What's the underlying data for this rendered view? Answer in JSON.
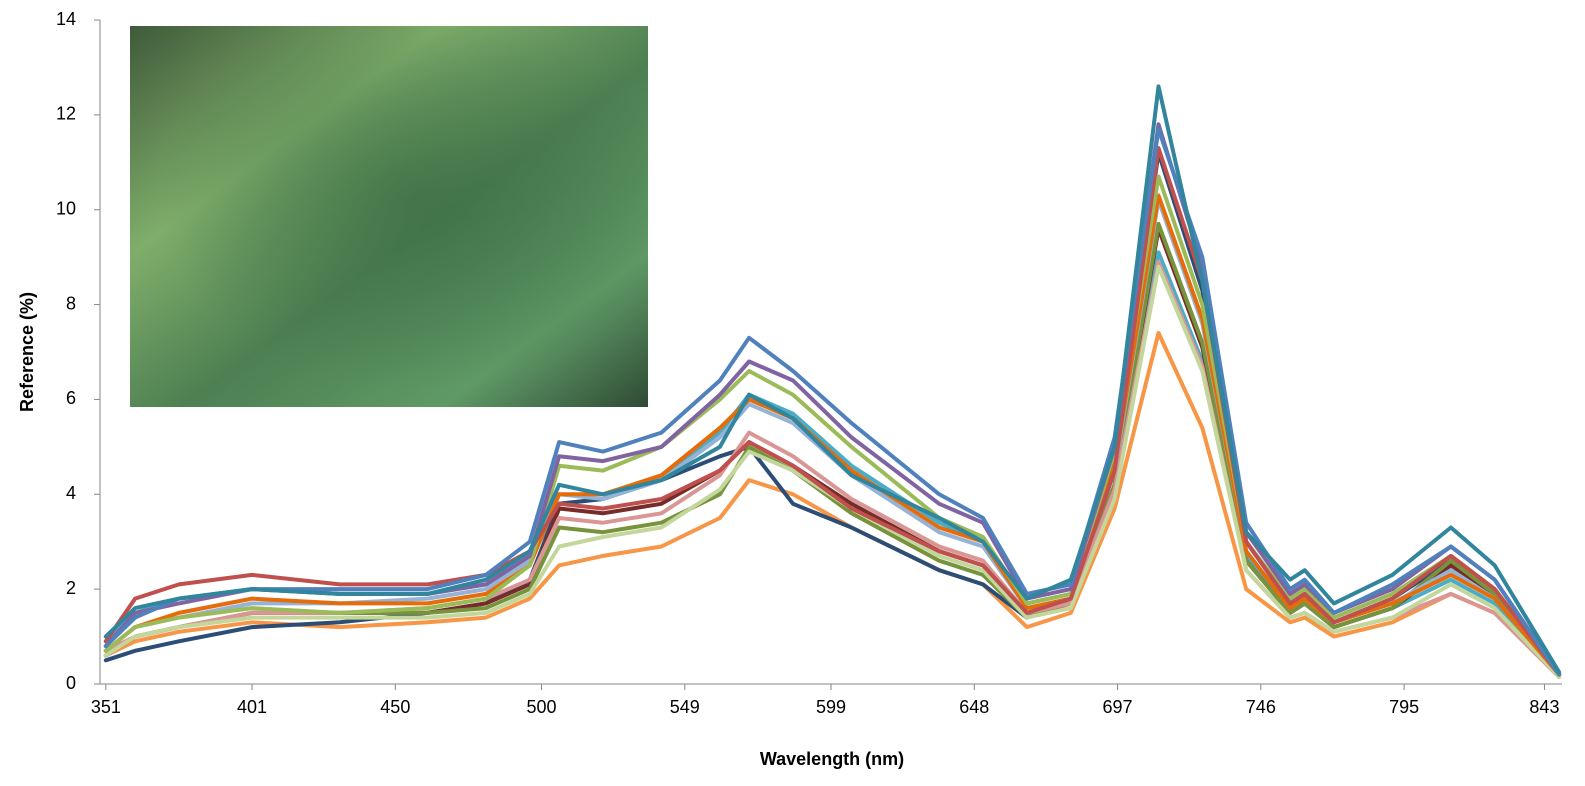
{
  "chart_data": {
    "type": "line",
    "x_label": "Wavelength (nm)",
    "y_label": "Reference (%)",
    "x": [
      351,
      361,
      376,
      401,
      431,
      461,
      481,
      496,
      506,
      521,
      541,
      561,
      571,
      586,
      606,
      636,
      651,
      666,
      681,
      696,
      711,
      726,
      741,
      756,
      761,
      771,
      791,
      811,
      826,
      848
    ],
    "xlim": [
      349,
      849
    ],
    "xticks": [
      351,
      401,
      450,
      500,
      549,
      599,
      648,
      697,
      746,
      795,
      843
    ],
    "ylim": [
      0,
      14
    ],
    "yticks": [
      0,
      2,
      4,
      6,
      8,
      10,
      12,
      14
    ],
    "series": [
      {
        "color": "#4bacc6",
        "values": [
          0.9,
          1.5,
          1.8,
          2.0,
          1.9,
          1.9,
          2.1,
          2.6,
          3.8,
          3.9,
          4.4,
          5.3,
          6.1,
          5.7,
          4.6,
          3.4,
          3.0,
          1.7,
          1.9,
          4.5,
          9.1,
          6.8,
          2.7,
          1.6,
          1.8,
          1.2,
          1.6,
          2.2,
          1.7,
          0.2
        ]
      },
      {
        "color": "#f79646",
        "values": [
          0.6,
          0.9,
          1.1,
          1.3,
          1.2,
          1.3,
          1.4,
          1.8,
          2.5,
          2.7,
          2.9,
          3.5,
          4.3,
          4.0,
          3.3,
          2.4,
          2.1,
          1.2,
          1.5,
          3.7,
          7.4,
          5.4,
          2.0,
          1.3,
          1.4,
          1.0,
          1.3,
          1.9,
          1.5,
          0.15
        ]
      },
      {
        "color": "#2c4d75",
        "values": [
          0.5,
          0.7,
          0.9,
          1.2,
          1.3,
          1.5,
          1.7,
          2.2,
          3.8,
          3.9,
          4.3,
          4.8,
          5.0,
          3.8,
          3.3,
          2.4,
          2.1,
          1.4,
          1.8,
          4.7,
          11.2,
          8.3,
          3.0,
          1.7,
          1.9,
          1.3,
          1.8,
          2.6,
          2.0,
          0.2
        ]
      },
      {
        "color": "#772c2a",
        "values": [
          0.6,
          1.0,
          1.2,
          1.5,
          1.5,
          1.5,
          1.7,
          2.1,
          3.7,
          3.6,
          3.8,
          4.5,
          5.1,
          4.6,
          3.8,
          2.8,
          2.5,
          1.5,
          1.8,
          4.2,
          9.6,
          7.1,
          2.6,
          1.5,
          1.7,
          1.2,
          1.6,
          2.5,
          1.9,
          0.2
        ]
      },
      {
        "color": "#77933c",
        "values": [
          0.6,
          1.0,
          1.2,
          1.5,
          1.5,
          1.5,
          1.6,
          2.0,
          3.3,
          3.2,
          3.4,
          4.0,
          5.0,
          4.5,
          3.6,
          2.6,
          2.3,
          1.4,
          1.7,
          4.2,
          9.7,
          7.2,
          2.6,
          1.5,
          1.7,
          1.2,
          1.6,
          2.6,
          1.9,
          0.2
        ]
      },
      {
        "color": "#d99694",
        "values": [
          0.7,
          1.0,
          1.2,
          1.5,
          1.5,
          1.6,
          1.8,
          2.2,
          3.5,
          3.4,
          3.6,
          4.4,
          5.3,
          4.8,
          3.9,
          2.9,
          2.6,
          1.5,
          1.7,
          4.1,
          8.9,
          6.7,
          2.4,
          1.4,
          1.5,
          1.1,
          1.4,
          1.9,
          1.5,
          0.15
        ]
      },
      {
        "color": "#c3d69b",
        "values": [
          0.6,
          1.0,
          1.2,
          1.4,
          1.4,
          1.4,
          1.5,
          1.9,
          2.9,
          3.1,
          3.3,
          4.1,
          4.9,
          4.5,
          3.7,
          2.7,
          2.4,
          1.4,
          1.6,
          3.9,
          8.8,
          6.6,
          2.4,
          1.4,
          1.5,
          1.1,
          1.4,
          2.1,
          1.6,
          0.15
        ]
      },
      {
        "color": "#95b3d7",
        "values": [
          0.7,
          1.2,
          1.4,
          1.7,
          1.7,
          1.8,
          2.0,
          2.6,
          4.0,
          3.9,
          4.3,
          5.2,
          5.9,
          5.5,
          4.4,
          3.2,
          2.9,
          1.6,
          1.8,
          4.5,
          10.2,
          7.6,
          2.8,
          1.6,
          1.8,
          1.3,
          1.7,
          2.4,
          1.8,
          0.2
        ]
      },
      {
        "color": "#e46c0a",
        "values": [
          0.7,
          1.2,
          1.5,
          1.8,
          1.7,
          1.7,
          1.9,
          2.5,
          4.0,
          4.0,
          4.4,
          5.4,
          6.0,
          5.6,
          4.5,
          3.3,
          3.0,
          1.6,
          1.8,
          4.6,
          10.3,
          7.7,
          2.8,
          1.6,
          1.8,
          1.3,
          1.7,
          2.3,
          1.8,
          0.2
        ]
      },
      {
        "color": "#9bbb59",
        "values": [
          0.7,
          1.2,
          1.4,
          1.6,
          1.5,
          1.6,
          1.8,
          2.5,
          4.6,
          4.5,
          5.0,
          6.0,
          6.6,
          6.1,
          5.0,
          3.5,
          3.1,
          1.7,
          1.9,
          4.9,
          10.7,
          8.0,
          3.0,
          1.8,
          2.0,
          1.4,
          1.9,
          2.7,
          2.0,
          0.2
        ]
      },
      {
        "color": "#c0504d",
        "values": [
          0.9,
          1.8,
          2.1,
          2.3,
          2.1,
          2.1,
          2.3,
          2.8,
          3.8,
          3.7,
          3.9,
          4.5,
          5.1,
          4.6,
          3.7,
          2.8,
          2.5,
          1.5,
          1.8,
          4.5,
          11.3,
          8.5,
          3.0,
          1.7,
          1.9,
          1.3,
          1.8,
          2.7,
          2.0,
          0.2
        ]
      },
      {
        "color": "#8064a2",
        "values": [
          0.8,
          1.5,
          1.7,
          2.0,
          1.9,
          1.9,
          2.1,
          2.7,
          4.8,
          4.7,
          5.0,
          6.1,
          6.8,
          6.4,
          5.2,
          3.8,
          3.4,
          1.8,
          2.0,
          5.0,
          11.8,
          8.8,
          3.2,
          1.9,
          2.1,
          1.5,
          2.0,
          2.9,
          2.2,
          0.2
        ]
      },
      {
        "color": "#4f81bd",
        "values": [
          0.8,
          1.4,
          1.8,
          2.0,
          2.0,
          2.0,
          2.3,
          3.0,
          5.1,
          4.9,
          5.3,
          6.4,
          7.3,
          6.6,
          5.5,
          4.0,
          3.5,
          1.9,
          2.1,
          5.2,
          11.7,
          9.0,
          3.4,
          2.0,
          2.2,
          1.5,
          2.1,
          2.9,
          2.2,
          0.2
        ]
      },
      {
        "color": "#31859c",
        "values": [
          1.0,
          1.6,
          1.8,
          2.0,
          1.9,
          1.9,
          2.2,
          2.8,
          4.2,
          4.0,
          4.3,
          5.0,
          6.1,
          5.6,
          4.4,
          3.5,
          3.0,
          1.8,
          2.2,
          5.0,
          12.6,
          8.5,
          3.2,
          2.2,
          2.4,
          1.7,
          2.3,
          3.3,
          2.5,
          0.25
        ]
      }
    ]
  }
}
